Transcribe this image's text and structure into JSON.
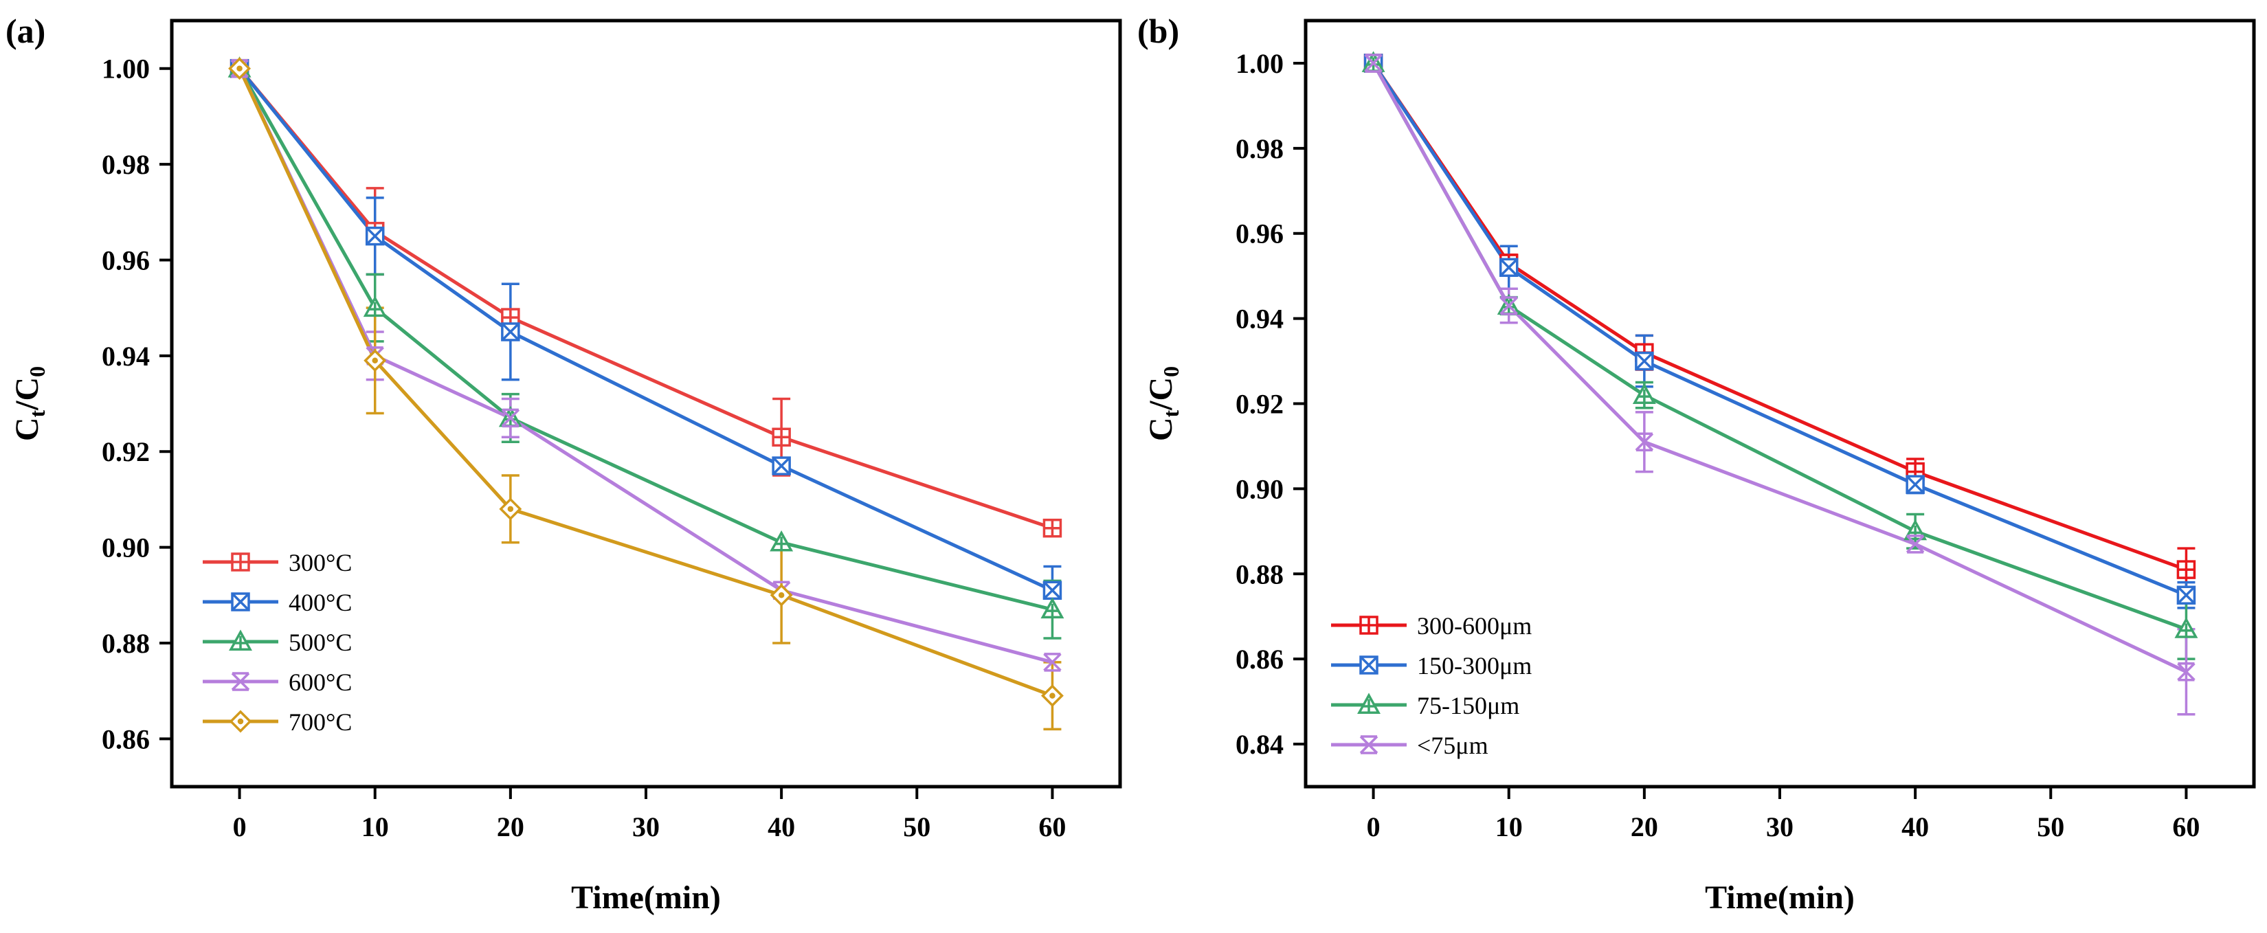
{
  "chart_data": [
    {
      "type": "line",
      "panel_label": "(a)",
      "xlabel": "Time(min)",
      "ylabel": {
        "main": "C",
        "sub_t": "t",
        "slash": "/C",
        "sub_0": "0"
      },
      "xlim": [
        -5,
        65
      ],
      "ylim": [
        0.85,
        1.01
      ],
      "xticks": [
        0,
        10,
        20,
        30,
        40,
        50,
        60
      ],
      "xtick_labels": [
        "0",
        "10",
        "20",
        "30",
        "40",
        "50",
        "60"
      ],
      "yticks": [
        0.86,
        0.88,
        0.9,
        0.92,
        0.94,
        0.96,
        0.98,
        1.0
      ],
      "ytick_labels": [
        "0.86",
        "0.88",
        "0.90",
        "0.92",
        "0.94",
        "0.96",
        "0.98",
        "1.00"
      ],
      "legend_position": "bottom-left",
      "grid": false,
      "x": [
        0,
        10,
        20,
        40,
        60
      ],
      "series": [
        {
          "name": "300°C",
          "color": "#E8403E",
          "marker": "square-plus",
          "values": [
            1.0,
            0.966,
            0.948,
            0.923,
            0.904
          ],
          "errors": [
            0,
            0.009,
            0,
            0.008,
            0
          ]
        },
        {
          "name": "400°C",
          "color": "#2E6FD0",
          "marker": "square-x",
          "values": [
            1.0,
            0.965,
            0.945,
            0.917,
            0.891
          ],
          "errors": [
            0,
            0.008,
            0.01,
            0,
            0.005
          ]
        },
        {
          "name": "500°C",
          "color": "#3CA66C",
          "marker": "triangle-plus",
          "values": [
            1.0,
            0.95,
            0.927,
            0.901,
            0.887
          ],
          "errors": [
            0,
            0.007,
            0.005,
            0,
            0.006
          ]
        },
        {
          "name": "600°C",
          "color": "#B57EDC",
          "marker": "x-bar",
          "values": [
            1.0,
            0.94,
            0.927,
            0.891,
            0.876
          ],
          "errors": [
            0,
            0.005,
            0.004,
            0,
            0
          ]
        },
        {
          "name": "700°C",
          "color": "#D29A1C",
          "marker": "diamond-dot",
          "values": [
            1.0,
            0.939,
            0.908,
            0.89,
            0.869
          ],
          "errors": [
            0,
            0.011,
            0.007,
            0.01,
            0.007
          ]
        }
      ]
    },
    {
      "type": "line",
      "panel_label": "(b)",
      "xlabel": "Time(min)",
      "ylabel": {
        "main": "C",
        "sub_t": "t",
        "slash": "/C",
        "sub_0": "0"
      },
      "xlim": [
        -5,
        65
      ],
      "ylim": [
        0.83,
        1.01
      ],
      "xticks": [
        0,
        10,
        20,
        30,
        40,
        50,
        60
      ],
      "xtick_labels": [
        "0",
        "10",
        "20",
        "30",
        "40",
        "50",
        "60"
      ],
      "yticks": [
        0.84,
        0.86,
        0.88,
        0.9,
        0.92,
        0.94,
        0.96,
        0.98,
        1.0
      ],
      "ytick_labels": [
        "0.84",
        "0.86",
        "0.88",
        "0.90",
        "0.92",
        "0.94",
        "0.96",
        "0.98",
        "1.00"
      ],
      "legend_position": "bottom-left",
      "grid": false,
      "x": [
        0,
        10,
        20,
        40,
        60
      ],
      "series": [
        {
          "name": "300-600μm",
          "color": "#E8171B",
          "marker": "square-plus",
          "values": [
            1.0,
            0.953,
            0.932,
            0.904,
            0.881
          ],
          "errors": [
            0,
            0.002,
            0.004,
            0.003,
            0.005
          ]
        },
        {
          "name": "150-300μm",
          "color": "#2E6FD0",
          "marker": "square-x",
          "values": [
            1.0,
            0.952,
            0.93,
            0.901,
            0.875
          ],
          "errors": [
            0,
            0.005,
            0.006,
            0.002,
            0.003
          ]
        },
        {
          "name": "75-150μm",
          "color": "#3CA66C",
          "marker": "triangle-plus",
          "values": [
            1.0,
            0.943,
            0.922,
            0.89,
            0.867
          ],
          "errors": [
            0,
            0.002,
            0.003,
            0.004,
            0.007
          ]
        },
        {
          "name": "<75μm",
          "color": "#B57EDC",
          "marker": "x-bar",
          "values": [
            1.0,
            0.943,
            0.911,
            0.887,
            0.857
          ],
          "errors": [
            0,
            0.004,
            0.007,
            0,
            0.01
          ]
        }
      ]
    }
  ]
}
